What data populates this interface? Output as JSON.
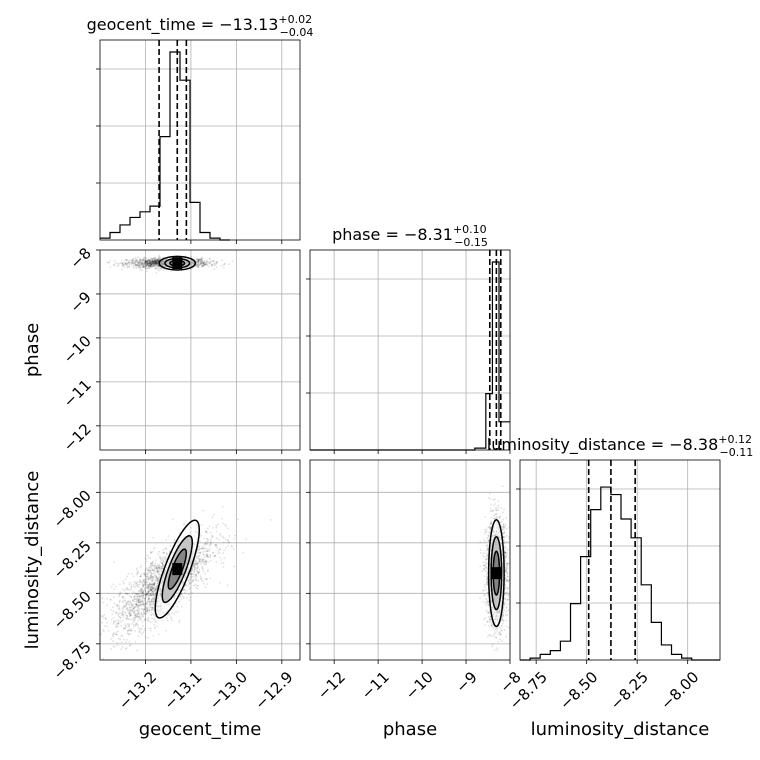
{
  "chart_data": {
    "type": "corner",
    "parameters": [
      "geocent_time",
      "phase",
      "luminosity_distance"
    ],
    "titles": [
      {
        "param": "geocent_time",
        "median": "−13.13",
        "plus": "+0.02",
        "minus": "−0.04",
        "prefix": "geocent_time = "
      },
      {
        "param": "phase",
        "median": "−8.31",
        "plus": "+0.10",
        "minus": "−0.15",
        "prefix": "phase = "
      },
      {
        "param": "luminosity_distance",
        "median": "−8.38",
        "plus": "+0.12",
        "minus": "−0.11",
        "prefix": "luminosity_distance = "
      }
    ],
    "axes": {
      "geocent_time": {
        "range": [
          -13.3,
          -12.86
        ],
        "ticks": [
          -13.2,
          -13.1,
          -13.0,
          -12.9
        ],
        "tick_labels": [
          "−13.2",
          "−13.1",
          "−13.0",
          "−12.9"
        ]
      },
      "phase": {
        "range": [
          -12.55,
          -8.0
        ],
        "ticks": [
          -12,
          -11,
          -10,
          -9,
          -8
        ],
        "tick_labels": [
          "−12",
          "−11",
          "−10",
          "−9",
          "−8"
        ]
      },
      "luminosity_distance": {
        "range": [
          -8.83,
          -7.84
        ],
        "ticks": [
          -8.75,
          -8.5,
          -8.25,
          -8.0
        ],
        "tick_labels": [
          "−8.75",
          "−8.50",
          "−8.25",
          "−8.00"
        ]
      }
    },
    "histograms": {
      "geocent_time": {
        "bin_edges": [
          -13.3,
          -13.278,
          -13.256,
          -13.234,
          -13.212,
          -13.19,
          -13.168,
          -13.146,
          -13.124,
          -13.102,
          -13.08,
          -13.058,
          -13.036,
          -13.014
        ],
        "counts": [
          0.01,
          0.04,
          0.08,
          0.12,
          0.15,
          0.18,
          0.55,
          1.0,
          0.85,
          0.2,
          0.04,
          0.01,
          0.0
        ],
        "quantiles": [
          -13.17,
          -13.13,
          -13.11
        ]
      },
      "phase": {
        "bin_edges": [
          -12.55,
          -12.3,
          -12.05,
          -11.8,
          -11.55,
          -11.3,
          -11.05,
          -10.8,
          -10.55,
          -10.3,
          -10.05,
          -9.8,
          -9.55,
          -9.3,
          -9.05,
          -8.8,
          -8.55,
          -8.4,
          -8.25,
          -8.0
        ],
        "counts": [
          0,
          0,
          0,
          0,
          0,
          0,
          0,
          0,
          0,
          0,
          0,
          0,
          0,
          0,
          0,
          0.01,
          0.3,
          1.0,
          0.15
        ],
        "quantiles": [
          -8.46,
          -8.31,
          -8.21
        ]
      },
      "luminosity_distance": {
        "bin_edges": [
          -8.83,
          -8.78,
          -8.73,
          -8.68,
          -8.63,
          -8.58,
          -8.53,
          -8.48,
          -8.43,
          -8.38,
          -8.33,
          -8.28,
          -8.23,
          -8.18,
          -8.13,
          -8.08,
          -8.03,
          -7.98,
          -7.93,
          -7.84
        ],
        "counts": [
          0.0,
          0.01,
          0.03,
          0.05,
          0.1,
          0.3,
          0.55,
          0.8,
          0.92,
          0.88,
          0.75,
          0.65,
          0.4,
          0.2,
          0.08,
          0.03,
          0.01,
          0.0,
          0.0
        ],
        "quantiles": [
          -8.49,
          -8.38,
          -8.26
        ]
      }
    },
    "grid": true
  }
}
